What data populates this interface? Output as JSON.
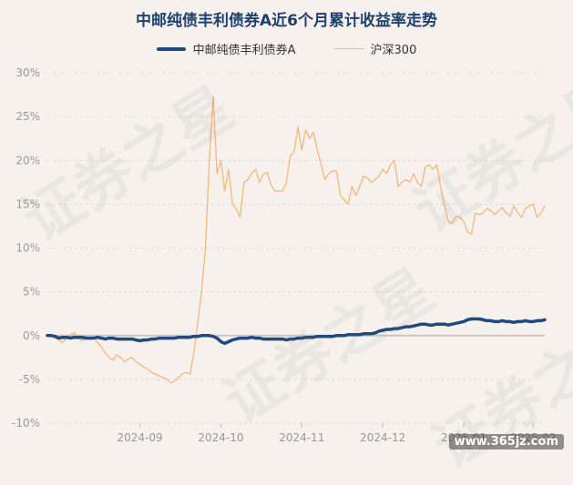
{
  "chart_data": {
    "type": "line",
    "title": "中邮纯债丰利债券A近6个月累计收益率走势",
    "ylim": [
      -10,
      30
    ],
    "y_ticks": [
      "30%",
      "25%",
      "20%",
      "15%",
      "10%",
      "5%",
      "0%",
      "-5%",
      "-10%"
    ],
    "y_tick_values": [
      30,
      25,
      20,
      15,
      10,
      5,
      0,
      -5,
      -10
    ],
    "x_tick_labels": [
      "2024-09",
      "2024-10",
      "2024-11",
      "2024-12",
      "2025-01",
      "2025-02"
    ],
    "x_tick_index": [
      24,
      45,
      66,
      87,
      108,
      126
    ],
    "grid": true,
    "legend_position": "top",
    "colors": {
      "fund": "#1f4a7d",
      "index": "#f2b87a",
      "grid": "#dddddd",
      "zero": "#c8c8c8"
    },
    "series": [
      {
        "name": "中邮纯债丰利债券A",
        "values": [
          0.0,
          0.0,
          -0.1,
          -0.3,
          -0.2,
          -0.2,
          -0.3,
          -0.2,
          -0.2,
          -0.2,
          -0.3,
          -0.3,
          -0.3,
          -0.2,
          -0.3,
          -0.4,
          -0.3,
          -0.3,
          -0.4,
          -0.4,
          -0.4,
          -0.4,
          -0.4,
          -0.5,
          -0.6,
          -0.5,
          -0.5,
          -0.4,
          -0.4,
          -0.3,
          -0.3,
          -0.3,
          -0.3,
          -0.3,
          -0.2,
          -0.2,
          -0.2,
          -0.2,
          -0.1,
          -0.1,
          0.0,
          0.0,
          0.0,
          -0.1,
          -0.3,
          -0.7,
          -0.9,
          -0.7,
          -0.5,
          -0.4,
          -0.3,
          -0.3,
          -0.3,
          -0.2,
          -0.3,
          -0.3,
          -0.4,
          -0.4,
          -0.4,
          -0.4,
          -0.4,
          -0.4,
          -0.5,
          -0.4,
          -0.4,
          -0.3,
          -0.3,
          -0.2,
          -0.2,
          -0.2,
          -0.1,
          -0.1,
          -0.1,
          -0.1,
          -0.1,
          0.0,
          0.0,
          0.0,
          0.1,
          0.1,
          0.1,
          0.1,
          0.2,
          0.2,
          0.2,
          0.3,
          0.5,
          0.6,
          0.7,
          0.7,
          0.8,
          0.8,
          0.9,
          1.0,
          1.0,
          1.1,
          1.2,
          1.3,
          1.3,
          1.2,
          1.2,
          1.3,
          1.3,
          1.3,
          1.2,
          1.3,
          1.4,
          1.5,
          1.6,
          1.8,
          1.9,
          1.9,
          1.9,
          1.8,
          1.7,
          1.7,
          1.6,
          1.6,
          1.7,
          1.6,
          1.6,
          1.5,
          1.6,
          1.6,
          1.7,
          1.6,
          1.6,
          1.7,
          1.7,
          1.8
        ]
      },
      {
        "name": "沪深300",
        "values": [
          0.0,
          0.0,
          -0.3,
          -0.5,
          -0.8,
          -0.3,
          0.1,
          0.3,
          -0.2,
          -0.6,
          -0.3,
          -0.4,
          -0.2,
          -0.8,
          -1.3,
          -2.0,
          -2.5,
          -2.8,
          -2.2,
          -2.5,
          -3.0,
          -2.7,
          -2.5,
          -3.0,
          -3.3,
          -3.6,
          -3.8,
          -4.2,
          -4.4,
          -4.6,
          -4.8,
          -5.0,
          -5.4,
          -5.2,
          -4.8,
          -4.4,
          -4.2,
          -4.4,
          -2.0,
          1.5,
          5.0,
          10.0,
          20.0,
          27.3,
          18.5,
          20.0,
          16.5,
          19.0,
          15.0,
          14.5,
          13.5,
          17.5,
          17.8,
          18.5,
          19.0,
          17.5,
          18.4,
          18.6,
          17.2,
          16.5,
          16.5,
          16.5,
          17.5,
          20.5,
          21.0,
          23.8,
          21.2,
          23.5,
          22.5,
          23.2,
          21.2,
          19.5,
          17.8,
          18.5,
          18.8,
          18.8,
          16.0,
          15.5,
          15.0,
          17.0,
          16.0,
          17.0,
          18.2,
          18.0,
          17.5,
          17.8,
          18.2,
          19.0,
          18.5,
          19.5,
          20.0,
          17.0,
          17.5,
          17.8,
          17.5,
          18.5,
          17.5,
          17.0,
          19.2,
          19.5,
          19.0,
          19.5,
          17.0,
          14.8,
          13.0,
          12.8,
          13.6,
          13.5,
          13.0,
          11.8,
          11.6,
          14.0,
          13.8,
          14.0,
          14.5,
          14.3,
          13.8,
          14.2,
          14.6,
          14.0,
          13.6,
          14.8,
          14.0,
          13.5,
          14.5,
          14.8,
          15.0,
          13.5,
          14.0,
          14.8
        ]
      }
    ]
  },
  "watermark": {
    "text": "证券之星",
    "footer": "www.365jz.com"
  }
}
